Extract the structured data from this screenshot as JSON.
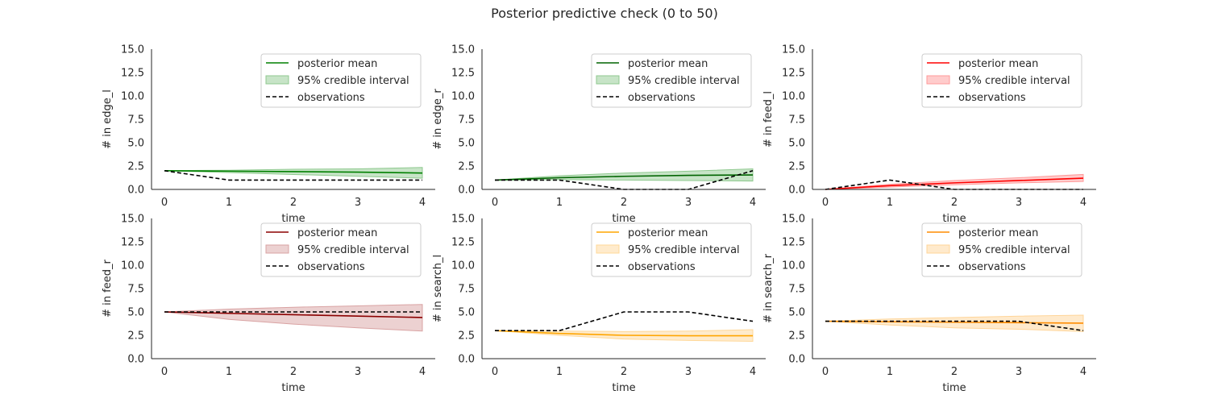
{
  "title": "Posterior predictive check (0 to 50)",
  "legend": {
    "mean_label": "posterior mean",
    "ci_label": "95% credible interval",
    "obs_label": "observations"
  },
  "chart_data": [
    {
      "type": "line",
      "xlabel": "time",
      "ylabel": "# in edge_l",
      "x": [
        0,
        1,
        2,
        3,
        4
      ],
      "xlim": [
        -0.2,
        4.2
      ],
      "ylim": [
        0,
        15
      ],
      "xticks": [
        "0",
        "1",
        "2",
        "3",
        "4"
      ],
      "yticks": [
        "0.0",
        "2.5",
        "5.0",
        "7.5",
        "10.0",
        "12.5",
        "15.0"
      ],
      "legend_position": "top-right",
      "grid": false,
      "color": "#008000",
      "band_color": "#8fc98f",
      "series": [
        {
          "name": "posterior mean",
          "values": [
            2.0,
            1.95,
            1.9,
            1.85,
            1.75
          ]
        },
        {
          "name": "95% credible interval",
          "lower": [
            2.0,
            1.8,
            1.6,
            1.4,
            1.2
          ],
          "upper": [
            2.0,
            2.05,
            2.15,
            2.2,
            2.35
          ]
        },
        {
          "name": "observations",
          "values": [
            2,
            1,
            1,
            1,
            1
          ]
        }
      ]
    },
    {
      "type": "line",
      "xlabel": "time",
      "ylabel": "# in edge_r",
      "x": [
        0,
        1,
        2,
        3,
        4
      ],
      "xlim": [
        -0.2,
        4.2
      ],
      "ylim": [
        0,
        15
      ],
      "xticks": [
        "0",
        "1",
        "2",
        "3",
        "4"
      ],
      "yticks": [
        "0.0",
        "2.5",
        "5.0",
        "7.5",
        "10.0",
        "12.5",
        "15.0"
      ],
      "legend_position": "top-right",
      "grid": false,
      "color": "#006400",
      "band_color": "#8fc98f",
      "series": [
        {
          "name": "posterior mean",
          "values": [
            1.0,
            1.25,
            1.4,
            1.5,
            1.55
          ]
        },
        {
          "name": "95% credible interval",
          "lower": [
            1.0,
            1.05,
            1.0,
            0.95,
            0.9
          ],
          "upper": [
            1.0,
            1.45,
            1.75,
            1.95,
            2.2
          ]
        },
        {
          "name": "observations",
          "values": [
            1,
            1,
            0,
            0,
            2
          ]
        }
      ]
    },
    {
      "type": "line",
      "xlabel": "time",
      "ylabel": "# in feed_l",
      "x": [
        0,
        1,
        2,
        3,
        4
      ],
      "xlim": [
        -0.2,
        4.2
      ],
      "ylim": [
        0,
        15
      ],
      "xticks": [
        "0",
        "1",
        "2",
        "3",
        "4"
      ],
      "yticks": [
        "0.0",
        "2.5",
        "5.0",
        "7.5",
        "10.0",
        "12.5",
        "15.0"
      ],
      "legend_position": "top-right",
      "grid": false,
      "color": "#ff0000",
      "band_color": "#ff9a9a",
      "series": [
        {
          "name": "posterior mean",
          "values": [
            0.0,
            0.4,
            0.7,
            0.95,
            1.2
          ]
        },
        {
          "name": "95% credible interval",
          "lower": [
            0.0,
            0.25,
            0.5,
            0.7,
            0.85
          ],
          "upper": [
            0.0,
            0.55,
            0.95,
            1.25,
            1.6
          ]
        },
        {
          "name": "observations",
          "values": [
            0,
            1,
            0,
            0,
            0
          ]
        }
      ]
    },
    {
      "type": "line",
      "xlabel": "time",
      "ylabel": "# in feed_r",
      "x": [
        0,
        1,
        2,
        3,
        4
      ],
      "xlim": [
        -0.2,
        4.2
      ],
      "ylim": [
        0,
        15
      ],
      "xticks": [
        "0",
        "1",
        "2",
        "3",
        "4"
      ],
      "yticks": [
        "0.0",
        "2.5",
        "5.0",
        "7.5",
        "10.0",
        "12.5",
        "15.0"
      ],
      "legend_position": "top-right",
      "grid": false,
      "color": "#8b0000",
      "band_color": "#d9a3a3",
      "series": [
        {
          "name": "posterior mean",
          "values": [
            5.0,
            4.85,
            4.7,
            4.55,
            4.4
          ]
        },
        {
          "name": "95% credible interval",
          "lower": [
            5.0,
            4.2,
            3.7,
            3.3,
            2.95
          ],
          "upper": [
            5.0,
            5.3,
            5.5,
            5.65,
            5.8
          ]
        },
        {
          "name": "observations",
          "values": [
            5,
            5,
            5,
            5,
            5
          ]
        }
      ]
    },
    {
      "type": "line",
      "xlabel": "time",
      "ylabel": "# in search_l",
      "x": [
        0,
        1,
        2,
        3,
        4
      ],
      "xlim": [
        -0.2,
        4.2
      ],
      "ylim": [
        0,
        15
      ],
      "xticks": [
        "0",
        "1",
        "2",
        "3",
        "4"
      ],
      "yticks": [
        "0.0",
        "2.5",
        "5.0",
        "7.5",
        "10.0",
        "12.5",
        "15.0"
      ],
      "legend_position": "top-right",
      "grid": false,
      "color": "#ffa500",
      "band_color": "#ffd899",
      "series": [
        {
          "name": "posterior mean",
          "values": [
            3.0,
            2.7,
            2.5,
            2.45,
            2.45
          ]
        },
        {
          "name": "95% credible interval",
          "lower": [
            3.0,
            2.5,
            2.1,
            1.95,
            1.85
          ],
          "upper": [
            3.0,
            2.95,
            2.9,
            2.95,
            3.1
          ]
        },
        {
          "name": "observations",
          "values": [
            3,
            3,
            5,
            5,
            4
          ]
        }
      ]
    },
    {
      "type": "line",
      "xlabel": "time",
      "ylabel": "# in search_r",
      "x": [
        0,
        1,
        2,
        3,
        4
      ],
      "xlim": [
        -0.2,
        4.2
      ],
      "ylim": [
        0,
        15
      ],
      "xticks": [
        "0",
        "1",
        "2",
        "3",
        "4"
      ],
      "yticks": [
        "0.0",
        "2.5",
        "5.0",
        "7.5",
        "10.0",
        "12.5",
        "15.0"
      ],
      "legend_position": "top-right",
      "grid": false,
      "color": "#ff8c00",
      "band_color": "#ffd599",
      "series": [
        {
          "name": "posterior mean",
          "values": [
            4.0,
            3.95,
            3.9,
            3.85,
            3.8
          ]
        },
        {
          "name": "95% credible interval",
          "lower": [
            4.0,
            3.6,
            3.3,
            3.15,
            2.9
          ],
          "upper": [
            4.0,
            4.25,
            4.4,
            4.55,
            4.65
          ]
        },
        {
          "name": "observations",
          "values": [
            4,
            4,
            4,
            4,
            3
          ]
        }
      ]
    }
  ]
}
